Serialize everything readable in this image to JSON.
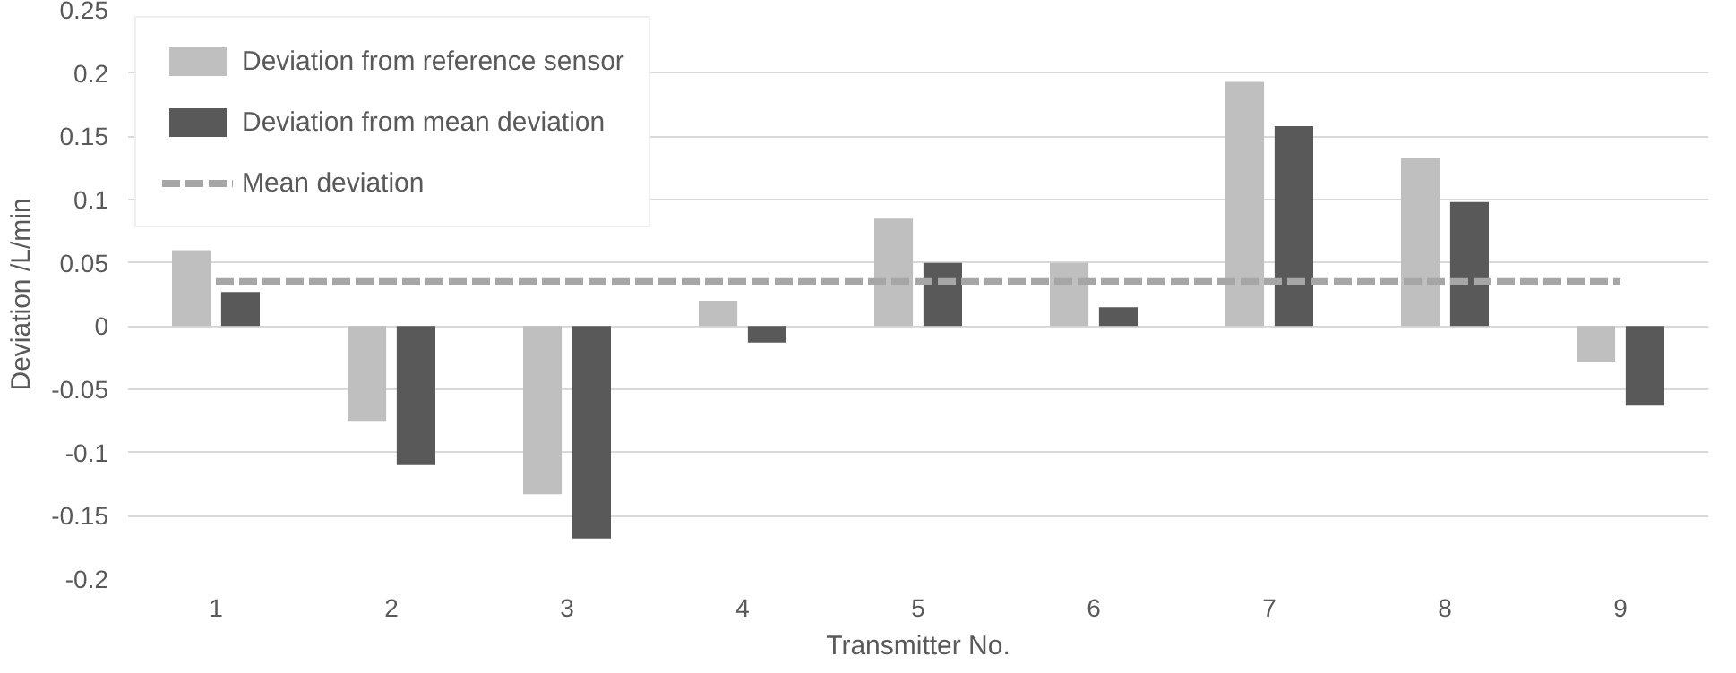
{
  "chart_data": {
    "type": "bar",
    "xlabel": "Transmitter No.",
    "ylabel": "Deviation /L/min",
    "categories": [
      "1",
      "2",
      "3",
      "4",
      "5",
      "6",
      "7",
      "8",
      "9"
    ],
    "series": [
      {
        "name": "Deviation from reference sensor",
        "color": "#bfbfbf",
        "values": [
          0.06,
          -0.075,
          -0.133,
          0.02,
          0.085,
          0.05,
          0.193,
          0.133,
          -0.028
        ]
      },
      {
        "name": "Deviation from mean deviation",
        "color": "#595959",
        "values": [
          0.027,
          -0.11,
          -0.168,
          -0.013,
          0.05,
          0.015,
          0.158,
          0.098,
          -0.063
        ]
      },
      {
        "name": "Mean deviation",
        "type": "line",
        "color": "#a6a6a6",
        "line_style": "dashed",
        "values": [
          0.035,
          0.035,
          0.035,
          0.035,
          0.035,
          0.035,
          0.035,
          0.035,
          0.035
        ]
      }
    ],
    "ylim": [
      -0.2,
      0.25
    ],
    "yticks": [
      0.25,
      0.2,
      0.15,
      0.1,
      0.05,
      0,
      -0.05,
      -0.1,
      -0.15,
      -0.2
    ],
    "grid": "y",
    "legend": "top left"
  }
}
